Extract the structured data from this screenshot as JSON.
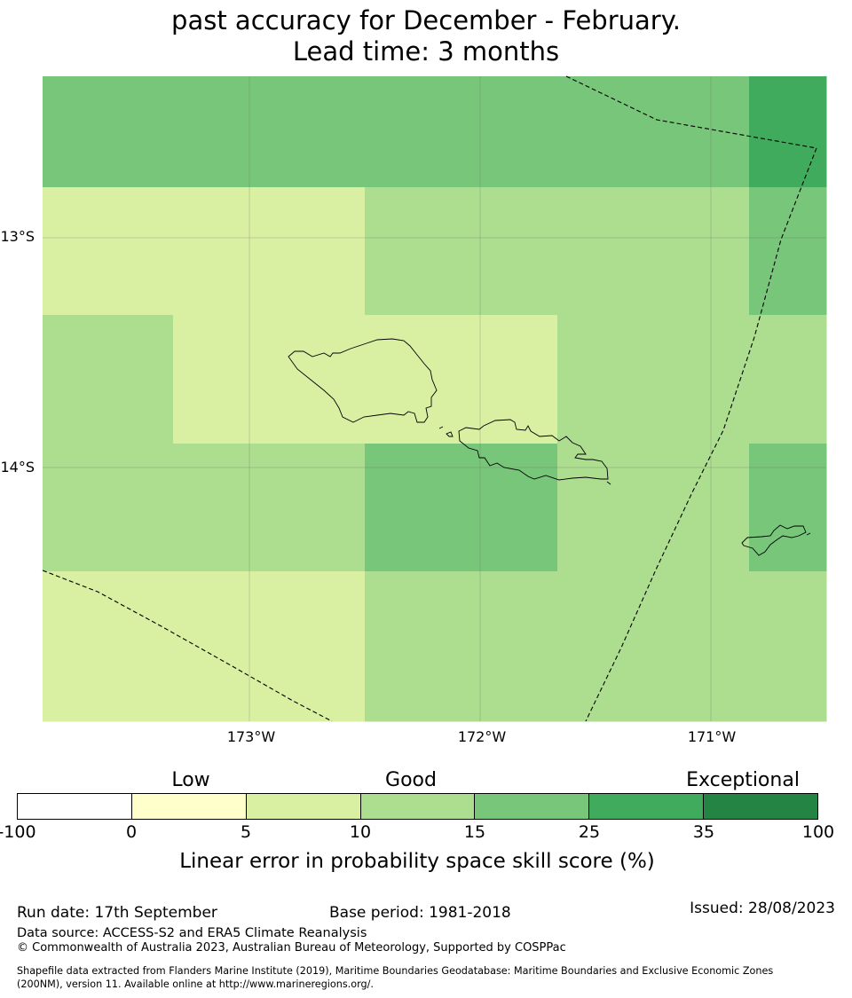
{
  "title": {
    "line1": "past accuracy for December - February.",
    "line2": "Lead time: 3 months"
  },
  "map": {
    "lat_labels": [
      "13°S",
      "14°S"
    ],
    "lon_labels": [
      "173°W",
      "172°W",
      "171°W"
    ],
    "grid_cell_skill_pct": [
      [
        "15-25",
        "15-25",
        "15-25",
        "15-25",
        "15-25",
        "15-25",
        "25-35"
      ],
      [
        "5-10",
        "5-10",
        "5-10",
        "10-15",
        "10-15",
        "10-15",
        "15-25"
      ],
      [
        "10-15",
        "5-10",
        "5-10",
        "5-10",
        "10-15",
        "10-15",
        "10-15"
      ],
      [
        "10-15",
        "10-15",
        "10-15",
        "15-25",
        "10-15",
        "10-15",
        "15-25"
      ],
      [
        "5-10",
        "5-10",
        "5-10",
        "10-15",
        "10-15",
        "10-15",
        "10-15"
      ]
    ]
  },
  "colorbar": {
    "categories": [
      "Low",
      "Good",
      "Exceptional"
    ],
    "ticks": [
      "-100",
      "0",
      "5",
      "10",
      "15",
      "25",
      "35",
      "100"
    ],
    "colors": [
      "#ffffff",
      "#ffffcc",
      "#d9f0a3",
      "#addd8e",
      "#78c679",
      "#41ab5d",
      "#238443"
    ],
    "label": "Linear error in probability space skill score (%)"
  },
  "info": {
    "run_date": "Run date: 17th September",
    "base_period": "Base period: 1981-2018",
    "issued": "Issued: 28/08/2023",
    "data_source": "Data source: ACCESS-S2 and ERA5 Climate Reanalysis",
    "copyright": "© Commonwealth of Australia 2023, Australian Bureau of Meteorology, Supported by COSPPac",
    "shapefile_line1": "Shapefile data extracted from Flanders Marine Institute (2019), Maritime Boundaries Geodatabase: Maritime Boundaries and Exclusive Economic Zones",
    "shapefile_line2": "(200NM), version 11. Available online at http://www.marineregions.org/."
  }
}
